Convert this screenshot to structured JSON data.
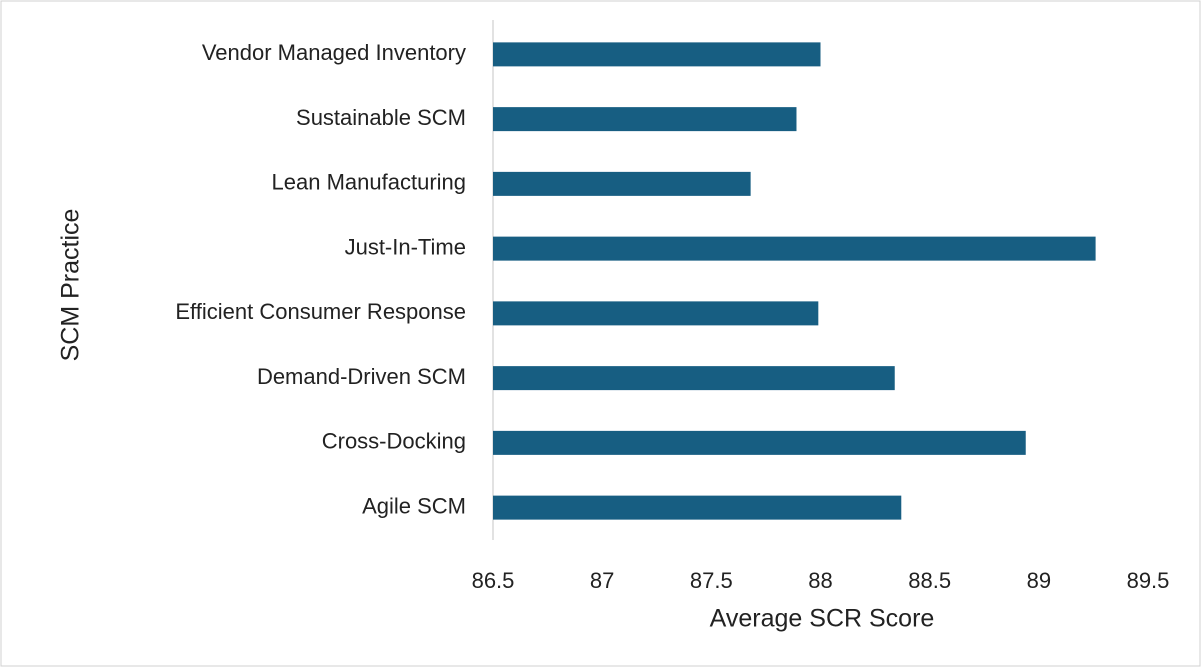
{
  "chart_data": {
    "type": "hbar",
    "categories": [
      "Vendor Managed Inventory",
      "Sustainable SCM",
      "Lean Manufacturing",
      "Just-In-Time",
      "Efficient Consumer Response",
      "Demand-Driven SCM",
      "Cross-Docking",
      "Agile SCM"
    ],
    "values": [
      88.0,
      87.89,
      87.68,
      89.26,
      87.99,
      88.34,
      88.94,
      88.37
    ],
    "color": "#175e82",
    "xlabel": "Average SCR Score",
    "ylabel": "SCM Practice",
    "xlim": [
      86.5,
      89.5
    ],
    "xticks": [
      86.5,
      87,
      87.5,
      88,
      88.5,
      89,
      89.5
    ],
    "grid": false
  }
}
